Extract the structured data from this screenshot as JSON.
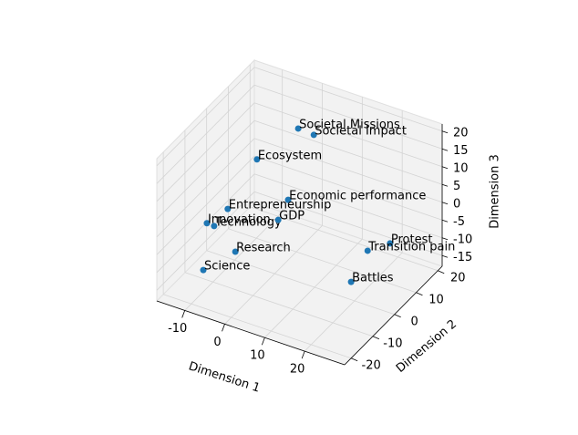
{
  "chart_data": {
    "type": "scatter3d",
    "labels": [
      "Societal Missions",
      "Societal Impact",
      "Ecosystem",
      "Economic performance",
      "Entrepreneurship",
      "Innovation",
      "Technology",
      "GDP",
      "Research",
      "Science",
      "Protest",
      "Transition pain",
      "Battles"
    ],
    "x": [
      -0.6,
      3.3,
      -5.5,
      -0.4,
      -10.1,
      -12.6,
      -10.8,
      -2.9,
      -8.2,
      -13.5,
      25.1,
      22.2,
      26.2
    ],
    "y": [
      12,
      12,
      2,
      7,
      -3,
      -8,
      -8,
      7,
      -3,
      -8,
      7,
      2,
      -13
    ],
    "z": [
      15.2,
      14.9,
      10.8,
      -1.7,
      -1.8,
      -3.7,
      -3.8,
      -8.3,
      -13.1,
      -17.2,
      -4.2,
      -4.3,
      -2.3
    ],
    "color": "#1f77b4",
    "xlabel": "Dimension 1",
    "ylabel": "Dimension 2",
    "zlabel": "Dimension 3",
    "xlim": [
      -17,
      30
    ],
    "ylim": [
      -23,
      22
    ],
    "zlim": [
      -18,
      22
    ],
    "xticks": [
      -10,
      0,
      10,
      20
    ],
    "yticks": [
      -20,
      -10,
      0,
      10,
      20
    ],
    "zticks": [
      -15,
      -10,
      -5,
      0,
      5,
      10,
      15,
      20
    ],
    "grid": true
  }
}
